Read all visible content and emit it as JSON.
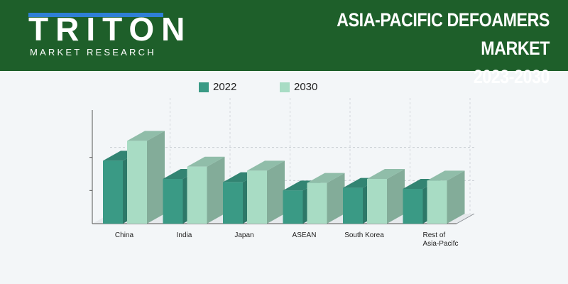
{
  "header": {
    "logo_text": "TRITON",
    "logo_subtext": "MARKET RESEARCH",
    "title_line1": "ASIA-PACIFIC DEFOAMERS MARKET",
    "title_line2": "2023-2030"
  },
  "colors": {
    "header_bg": "#1e5f2a",
    "series_2022": "#3a9a85",
    "series_2030": "#a8dcc4"
  },
  "chart_data": {
    "type": "bar",
    "title": "",
    "xlabel": "",
    "ylabel": "",
    "categories": [
      "China",
      "India",
      "Japan",
      "ASEAN",
      "South Korea",
      "Rest of Asia-Pacifc"
    ],
    "category_lines": [
      [
        "China"
      ],
      [
        "India"
      ],
      [
        "Japan"
      ],
      [
        "ASEAN"
      ],
      [
        "South Korea"
      ],
      [
        "Rest of",
        "Asia-Pacifc"
      ]
    ],
    "series": [
      {
        "name": "2022",
        "values": [
          1.9,
          1.35,
          1.25,
          1.0,
          1.08,
          1.05
        ]
      },
      {
        "name": "2030",
        "values": [
          2.5,
          1.72,
          1.6,
          1.23,
          1.35,
          1.3
        ]
      }
    ],
    "ylim": [
      0,
      3
    ],
    "grid": true,
    "legend": "top-center"
  }
}
